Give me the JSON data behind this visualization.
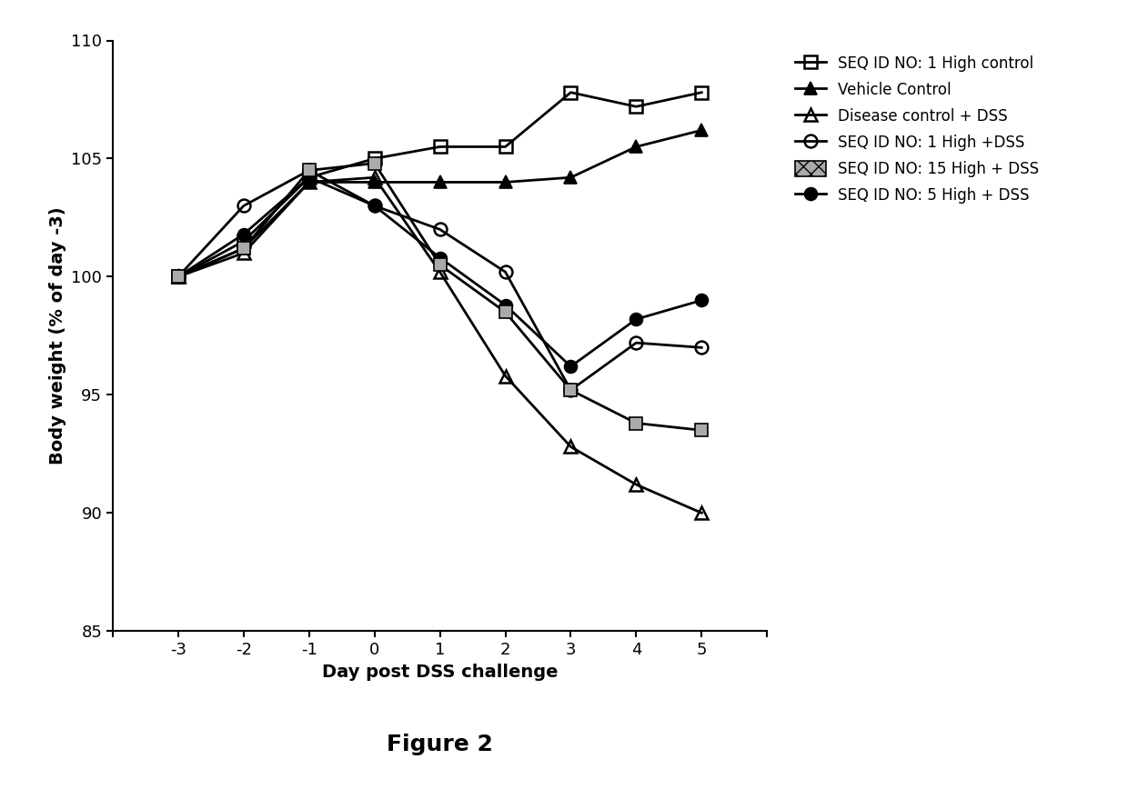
{
  "series": [
    {
      "name": "SEQ ID NO: 1 High control",
      "x": [
        -3,
        -2,
        -1,
        0,
        1,
        2,
        3,
        4,
        5
      ],
      "y": [
        100.0,
        101.5,
        104.2,
        105.0,
        105.5,
        105.5,
        107.8,
        107.2,
        107.8
      ],
      "marker": "s",
      "fillstyle": "none",
      "color": "black",
      "markersize": 10,
      "linewidth": 2.0
    },
    {
      "name": "Vehicle Control",
      "x": [
        -3,
        -2,
        -1,
        0,
        1,
        2,
        3,
        4,
        5
      ],
      "y": [
        100.0,
        101.2,
        104.0,
        104.0,
        104.0,
        104.0,
        104.2,
        105.5,
        106.2
      ],
      "marker": "^",
      "fillstyle": "full",
      "color": "black",
      "markersize": 10,
      "linewidth": 2.0
    },
    {
      "name": "Disease control + DSS",
      "x": [
        -3,
        -2,
        -1,
        0,
        1,
        2,
        3,
        4,
        5
      ],
      "y": [
        100.0,
        101.0,
        104.0,
        104.2,
        100.2,
        95.8,
        92.8,
        91.2,
        90.0
      ],
      "marker": "^",
      "fillstyle": "none",
      "color": "black",
      "markersize": 10,
      "linewidth": 2.0
    },
    {
      "name": "SEQ ID NO: 1 High +DSS",
      "x": [
        -3,
        -2,
        -1,
        0,
        1,
        2,
        3,
        4,
        5
      ],
      "y": [
        100.0,
        103.0,
        104.5,
        103.0,
        102.0,
        100.2,
        95.2,
        97.2,
        97.0
      ],
      "marker": "o",
      "fillstyle": "none",
      "color": "black",
      "markersize": 10,
      "linewidth": 2.0
    },
    {
      "name": "SEQ ID NO: 15 High + DSS",
      "x": [
        -3,
        -2,
        -1,
        0,
        1,
        2,
        3,
        4,
        5
      ],
      "y": [
        100.0,
        101.2,
        104.5,
        104.8,
        100.5,
        98.5,
        95.2,
        93.8,
        93.5
      ],
      "marker": "s",
      "fillstyle": "hatched",
      "color": "black",
      "markersize": 10,
      "linewidth": 2.0
    },
    {
      "name": "SEQ ID NO: 5 High + DSS",
      "x": [
        -3,
        -2,
        -1,
        0,
        1,
        2,
        3,
        4,
        5
      ],
      "y": [
        100.0,
        101.8,
        104.2,
        103.0,
        100.8,
        98.8,
        96.2,
        98.2,
        99.0
      ],
      "marker": "o",
      "fillstyle": "full",
      "color": "black",
      "markersize": 10,
      "linewidth": 2.0
    }
  ],
  "xlabel": "Day post DSS challenge",
  "ylabel": "Body weight (% of day -3)",
  "xlim": [
    -4,
    6
  ],
  "ylim": [
    85,
    110
  ],
  "yticks": [
    85,
    90,
    95,
    100,
    105,
    110
  ],
  "xticks": [
    -4,
    -3,
    -2,
    -1,
    0,
    1,
    2,
    3,
    4,
    5,
    6
  ],
  "xtick_labels": [
    "",
    "-3",
    "-2",
    "-1",
    "0",
    "1",
    "2",
    "3",
    "4",
    "5",
    ""
  ],
  "ytick_labels": [
    "85",
    "90",
    "95",
    "100",
    "105",
    "110"
  ],
  "figure_title": "Figure 2",
  "title_fontsize": 18,
  "axis_label_fontsize": 14,
  "tick_fontsize": 13,
  "legend_fontsize": 12
}
